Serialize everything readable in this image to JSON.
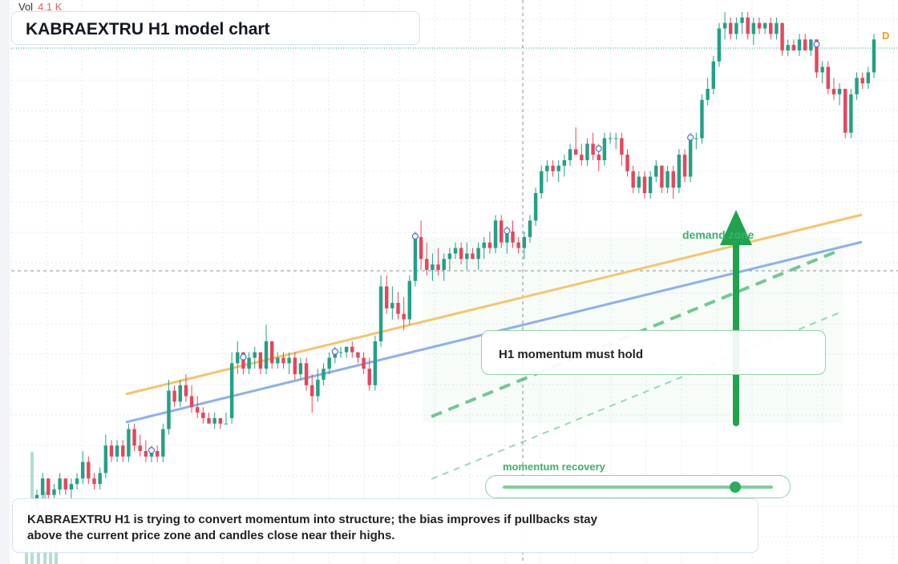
{
  "header": {
    "volume_label": "Vol",
    "volume_value": "4.1 K",
    "title": "KABRAEXTRU H1 model chart"
  },
  "annotations": {
    "demand_zone": "demand zone",
    "note": "H1 momentum must hold",
    "momentum_label": "momentum recovery",
    "momentum_level": 0.86,
    "summary": "KABRAEXTRU H1 is trying to convert momentum into structure; the bias improves if pullbacks stay above the current price zone and candles close near their highs.",
    "badge": "D"
  },
  "colors": {
    "up": "#22a186",
    "down": "#e8455a",
    "grid": "#e3e8ee",
    "accent_green": "#2bab5e",
    "trend_orange": "#f6c46a",
    "trend_blue": "#8fb0ee",
    "badge_orange": "#f39a1f"
  },
  "chart_data": {
    "type": "candlestick",
    "grid": true,
    "ylim": [
      0,
      100
    ],
    "candles": [
      [
        10,
        13,
        8,
        12
      ],
      [
        12,
        16,
        11,
        15
      ],
      [
        15,
        15,
        11,
        12
      ],
      [
        12,
        14,
        10,
        13
      ],
      [
        13,
        16,
        12,
        15
      ],
      [
        15,
        15,
        12,
        13
      ],
      [
        13,
        15,
        11,
        14
      ],
      [
        14,
        16,
        13,
        15
      ],
      [
        15,
        20,
        14,
        18
      ],
      [
        18,
        19,
        14,
        15
      ],
      [
        15,
        16,
        13,
        14
      ],
      [
        14,
        17,
        13,
        16
      ],
      [
        16,
        23,
        15,
        21
      ],
      [
        21,
        22,
        18,
        19
      ],
      [
        19,
        22,
        18,
        21
      ],
      [
        21,
        22,
        18,
        19
      ],
      [
        19,
        25,
        18,
        24
      ],
      [
        24,
        25,
        20,
        21
      ],
      [
        21,
        23,
        19,
        20
      ],
      [
        20,
        22,
        18,
        19
      ],
      [
        19,
        21,
        18,
        20
      ],
      [
        20,
        21,
        18,
        19
      ],
      [
        19,
        25,
        18,
        24
      ],
      [
        24,
        33,
        23,
        31
      ],
      [
        31,
        32,
        28,
        29
      ],
      [
        29,
        33,
        28,
        32
      ],
      [
        32,
        34,
        29,
        30
      ],
      [
        30,
        32,
        27,
        28
      ],
      [
        28,
        30,
        26,
        27
      ],
      [
        27,
        28,
        25,
        26
      ],
      [
        26,
        27,
        25,
        25
      ],
      [
        25,
        27,
        24,
        26
      ],
      [
        26,
        26,
        24,
        25
      ],
      [
        25,
        27,
        25,
        25
      ],
      [
        26,
        38,
        25,
        36
      ],
      [
        36,
        40,
        34,
        38
      ],
      [
        38,
        38,
        34,
        35
      ],
      [
        35,
        38,
        34,
        37
      ],
      [
        37,
        39,
        35,
        38
      ],
      [
        38,
        38,
        34,
        35
      ],
      [
        35,
        43,
        34,
        40
      ],
      [
        40,
        40,
        35,
        36
      ],
      [
        36,
        38,
        35,
        37
      ],
      [
        37,
        38,
        35,
        36
      ],
      [
        36,
        38,
        34,
        37
      ],
      [
        37,
        38,
        33,
        34
      ],
      [
        34,
        37,
        33,
        36
      ],
      [
        36,
        37,
        31,
        32
      ],
      [
        32,
        34,
        27,
        30
      ],
      [
        30,
        35,
        29,
        33
      ],
      [
        33,
        36,
        32,
        35
      ],
      [
        35,
        38,
        34,
        37
      ],
      [
        37,
        39,
        36,
        38
      ],
      [
        38,
        39,
        37,
        38
      ],
      [
        38,
        39,
        37,
        39
      ],
      [
        39,
        40,
        37,
        38
      ],
      [
        38,
        38,
        36,
        37
      ],
      [
        37,
        38,
        34,
        35
      ],
      [
        35,
        37,
        31,
        32
      ],
      [
        32,
        41,
        31,
        40
      ],
      [
        40,
        52,
        39,
        50
      ],
      [
        50,
        52,
        45,
        46
      ],
      [
        46,
        50,
        44,
        47
      ],
      [
        47,
        49,
        44,
        45
      ],
      [
        45,
        48,
        42,
        44
      ],
      [
        44,
        52,
        43,
        51
      ],
      [
        51,
        60,
        50,
        59
      ],
      [
        59,
        62,
        53,
        55
      ],
      [
        55,
        58,
        52,
        53
      ],
      [
        53,
        56,
        51,
        54
      ],
      [
        54,
        57,
        52,
        53
      ],
      [
        53,
        56,
        51,
        55
      ],
      [
        55,
        57,
        53,
        56
      ],
      [
        56,
        58,
        55,
        57
      ],
      [
        57,
        58,
        54,
        55
      ],
      [
        55,
        58,
        53,
        56
      ],
      [
        56,
        57,
        55,
        55
      ],
      [
        55,
        58,
        53,
        57
      ],
      [
        57,
        59,
        55,
        58
      ],
      [
        58,
        60,
        56,
        57
      ],
      [
        57,
        63,
        56,
        62
      ],
      [
        62,
        63,
        57,
        58
      ],
      [
        58,
        61,
        56,
        60
      ],
      [
        60,
        62,
        57,
        58
      ],
      [
        58,
        59,
        56,
        57
      ],
      [
        57,
        60,
        55,
        59
      ],
      [
        59,
        63,
        58,
        62
      ],
      [
        62,
        68,
        61,
        67
      ],
      [
        67,
        72,
        66,
        71
      ],
      [
        71,
        73,
        69,
        72
      ],
      [
        72,
        73,
        70,
        71
      ],
      [
        71,
        73,
        69,
        72
      ],
      [
        72,
        74,
        70,
        73
      ],
      [
        73,
        76,
        72,
        75
      ],
      [
        75,
        79,
        74,
        74
      ],
      [
        74,
        76,
        72,
        73
      ],
      [
        73,
        77,
        72,
        76
      ],
      [
        76,
        78,
        73,
        74
      ],
      [
        74,
        76,
        71,
        73
      ],
      [
        73,
        78,
        72,
        77
      ],
      [
        77,
        78,
        76,
        77
      ],
      [
        77,
        78,
        75,
        77
      ],
      [
        77,
        78,
        72,
        74
      ],
      [
        74,
        75,
        70,
        71
      ],
      [
        71,
        72,
        67,
        68
      ],
      [
        68,
        71,
        67,
        70
      ],
      [
        70,
        71,
        66,
        67
      ],
      [
        67,
        71,
        66,
        70
      ],
      [
        70,
        73,
        69,
        72
      ],
      [
        72,
        72,
        67,
        68
      ],
      [
        68,
        72,
        67,
        71
      ],
      [
        71,
        72,
        66,
        68
      ],
      [
        68,
        75,
        67,
        74
      ],
      [
        74,
        75,
        69,
        70
      ],
      [
        70,
        78,
        69,
        77
      ],
      [
        77,
        78,
        75,
        77
      ],
      [
        77,
        85,
        76,
        84
      ],
      [
        84,
        88,
        83,
        86
      ],
      [
        86,
        92,
        85,
        91
      ],
      [
        91,
        98,
        90,
        97
      ],
      [
        97,
        100,
        95,
        98
      ],
      [
        98,
        99,
        95,
        96
      ],
      [
        96,
        99,
        95,
        98
      ],
      [
        98,
        100,
        96,
        99
      ],
      [
        99,
        100,
        95,
        96
      ],
      [
        96,
        99,
        94,
        98
      ],
      [
        98,
        99,
        96,
        97
      ],
      [
        97,
        98,
        96,
        98
      ],
      [
        98,
        99,
        95,
        96
      ],
      [
        96,
        99,
        95,
        98
      ],
      [
        98,
        98,
        92,
        93
      ],
      [
        93,
        95,
        92,
        94
      ],
      [
        94,
        95,
        93,
        93
      ],
      [
        93,
        96,
        92,
        95
      ],
      [
        95,
        96,
        93,
        93
      ],
      [
        93,
        95,
        92,
        95
      ],
      [
        95,
        95,
        88,
        89
      ],
      [
        89,
        91,
        87,
        90
      ],
      [
        90,
        91,
        85,
        86
      ],
      [
        86,
        88,
        84,
        85
      ],
      [
        85,
        87,
        83,
        86
      ],
      [
        86,
        86,
        77,
        78
      ],
      [
        78,
        86,
        77,
        85
      ],
      [
        85,
        89,
        84,
        88
      ],
      [
        88,
        89,
        86,
        87
      ],
      [
        87,
        90,
        86,
        89
      ],
      [
        89,
        96,
        88,
        95
      ]
    ]
  }
}
